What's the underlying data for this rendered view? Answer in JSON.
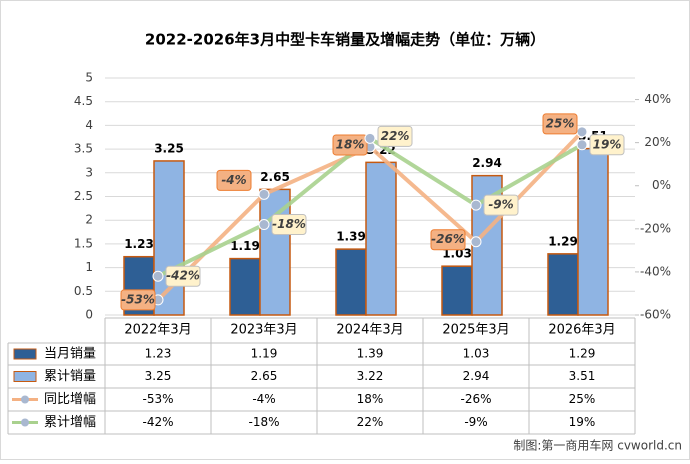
{
  "chart_data": {
    "type": "bar-line",
    "title": "2022-2026年3月中型卡车销量及增幅走势（单位：万辆）",
    "categories": [
      "2022年3月",
      "2023年3月",
      "2024年3月",
      "2025年3月",
      "2026年3月"
    ],
    "series": [
      {
        "name": "当月销量",
        "type": "bar",
        "color": "#2e5f95",
        "values": [
          1.23,
          1.19,
          1.39,
          1.03,
          1.29
        ]
      },
      {
        "name": "累计销量",
        "type": "bar",
        "color": "#8fb4e3",
        "values": [
          3.25,
          2.65,
          3.22,
          2.94,
          3.51
        ]
      },
      {
        "name": "同比增幅",
        "type": "line",
        "axis": "y2",
        "color": "#f4b183",
        "values": [
          -53,
          -4,
          18,
          -26,
          25
        ],
        "value_labels": [
          "-53%",
          "-4%",
          "18%",
          "-26%",
          "25%"
        ]
      },
      {
        "name": "累计增幅",
        "type": "line",
        "axis": "y2",
        "color": "#a9d18e",
        "values": [
          -42,
          -18,
          22,
          -9,
          19
        ],
        "value_labels": [
          "-42%",
          "-18%",
          "22%",
          "-9%",
          "19%"
        ]
      }
    ],
    "ylim": [
      0,
      5
    ],
    "yticks": [
      0,
      0.5,
      1,
      1.5,
      2,
      2.5,
      3,
      3.5,
      4,
      4.5,
      5
    ],
    "y2lim": [
      -60,
      50
    ],
    "y2ticks": [
      {
        "value": -60,
        "label": "-60%"
      },
      {
        "value": -40,
        "label": "-40%"
      },
      {
        "value": -20,
        "label": "-20%"
      },
      {
        "value": 0,
        "label": "0%"
      },
      {
        "value": 20,
        "label": "20%"
      },
      {
        "value": 40,
        "label": "40%"
      }
    ],
    "grid": true,
    "source": "制图:第一商用车网 cvworld.cn"
  }
}
